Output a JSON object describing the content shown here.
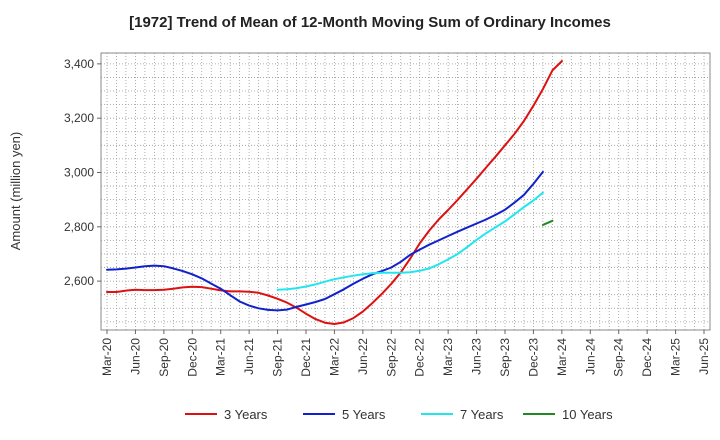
{
  "chart_data": {
    "type": "line",
    "title": "[1972]  Trend of Mean of 12-Month Moving Sum of Ordinary Incomes",
    "xlabel": "",
    "ylabel": "Amount (million yen)",
    "ylim": [
      2420,
      3440
    ],
    "yticks": [
      2600,
      2800,
      3000,
      3200,
      3400
    ],
    "ytick_labels": [
      "2,600",
      "2,800",
      "3,000",
      "3,200",
      "3,400"
    ],
    "x_tick_labels": [
      "Mar-20",
      "Jun-20",
      "Sep-20",
      "Dec-20",
      "Mar-21",
      "Jun-21",
      "Sep-21",
      "Dec-21",
      "Mar-22",
      "Jun-22",
      "Sep-22",
      "Dec-22",
      "Mar-23",
      "Jun-23",
      "Sep-23",
      "Dec-23",
      "Mar-24",
      "Jun-24",
      "Sep-24",
      "Dec-24",
      "Mar-25",
      "Jun-25"
    ],
    "grid": true,
    "legend_position": "bottom",
    "series": [
      {
        "name": "3 Years",
        "color": "#dd1111",
        "start_index": 0,
        "values": [
          2560,
          2560,
          2565,
          2568,
          2567,
          2567,
          2568,
          2572,
          2577,
          2579,
          2578,
          2572,
          2566,
          2562,
          2562,
          2561,
          2557,
          2547,
          2535,
          2521,
          2502,
          2480,
          2460,
          2447,
          2442,
          2448,
          2464,
          2488,
          2519,
          2553,
          2590,
          2632,
          2683,
          2739,
          2786,
          2827,
          2862,
          2899,
          2938,
          2977,
          3018,
          3058,
          3100,
          3142,
          3190,
          3246,
          3307,
          3376,
          3410
        ]
      },
      {
        "name": "5 Years",
        "color": "#1122cc",
        "start_index": 0,
        "values": [
          2642,
          2643,
          2646,
          2650,
          2655,
          2657,
          2655,
          2647,
          2637,
          2625,
          2610,
          2591,
          2572,
          2548,
          2525,
          2510,
          2500,
          2494,
          2492,
          2495,
          2505,
          2514,
          2523,
          2534,
          2552,
          2570,
          2590,
          2609,
          2625,
          2637,
          2650,
          2671,
          2697,
          2716,
          2734,
          2750,
          2766,
          2782,
          2797,
          2812,
          2827,
          2844,
          2863,
          2889,
          2918,
          2958,
          3002
        ]
      },
      {
        "name": "7 Years",
        "color": "#22e5ee",
        "start_index": 18,
        "values": [
          2568,
          2570,
          2574,
          2580,
          2588,
          2598,
          2607,
          2614,
          2620,
          2625,
          2629,
          2631,
          2631,
          2631,
          2633,
          2638,
          2647,
          2662,
          2680,
          2700,
          2725,
          2752,
          2776,
          2798,
          2820,
          2846,
          2873,
          2897,
          2926
        ]
      },
      {
        "name": "10 Years",
        "color": "#228822",
        "start_index": 46,
        "values": [
          2807,
          2822
        ]
      }
    ]
  }
}
